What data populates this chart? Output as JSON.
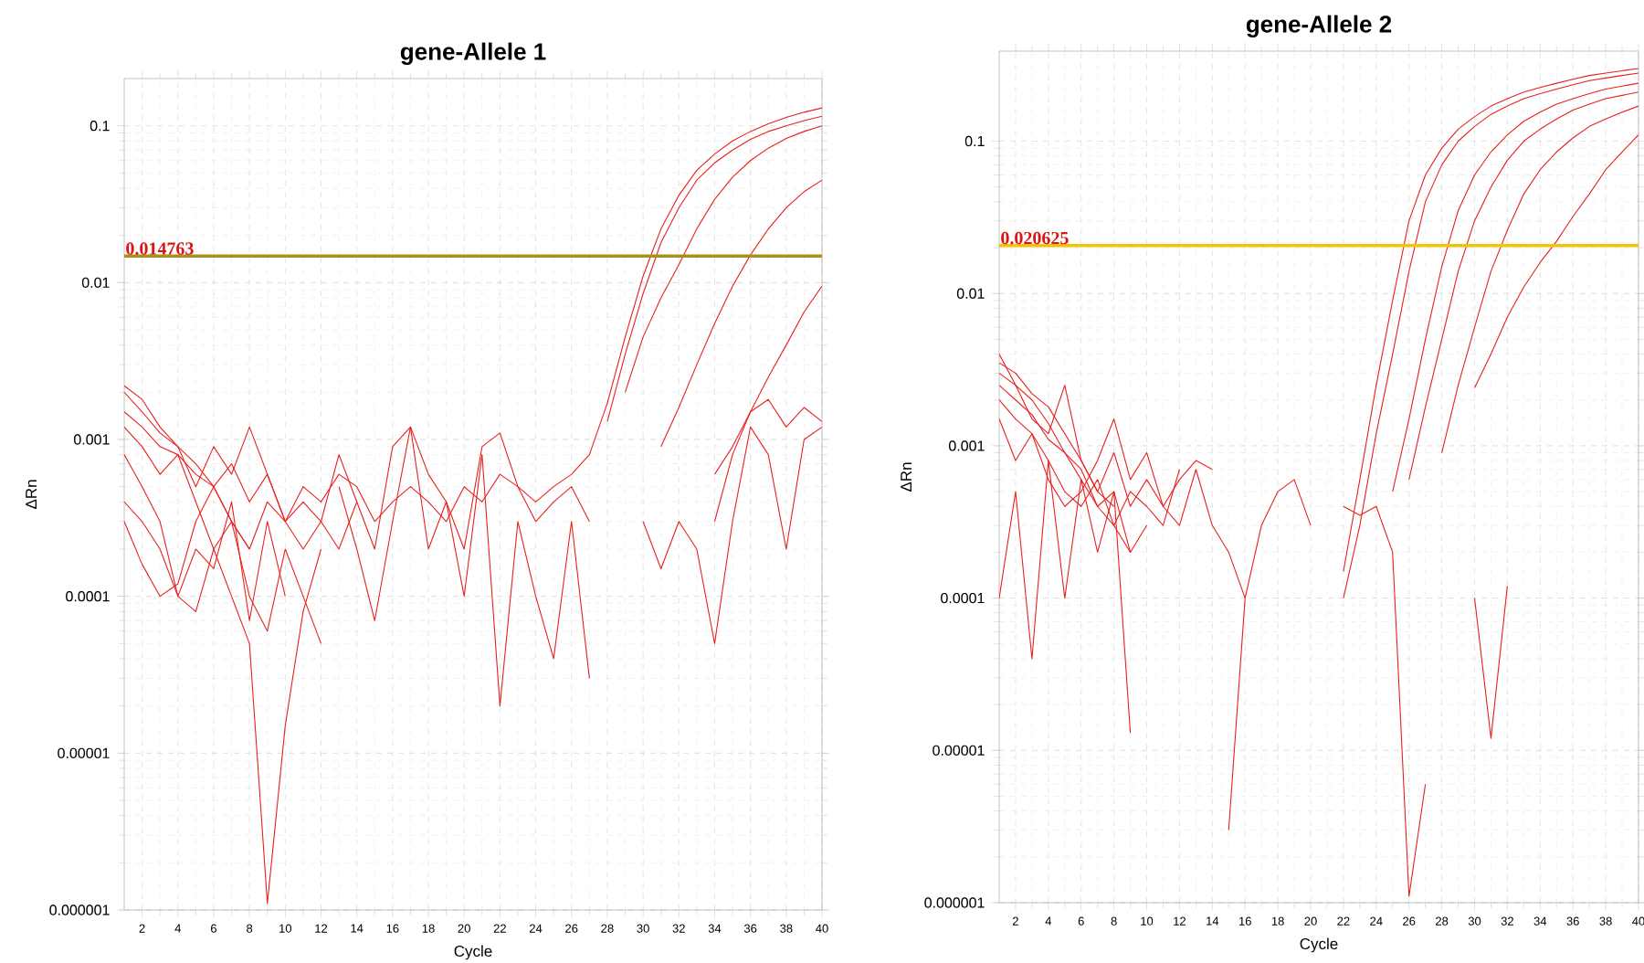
{
  "chart_data": [
    {
      "type": "line",
      "title": "gene-Allele 1",
      "xlabel": "Cycle",
      "ylabel": "ΔRn",
      "log": true,
      "grid": true,
      "xlim": [
        1,
        40
      ],
      "ylim": [
        1e-06,
        0.2
      ],
      "xticks": [
        2,
        4,
        6,
        8,
        10,
        12,
        14,
        16,
        18,
        20,
        22,
        24,
        26,
        28,
        30,
        32,
        34,
        36,
        38,
        40
      ],
      "yticks": [
        {
          "value": 1e-06,
          "label": "0.000001"
        },
        {
          "value": 1e-05,
          "label": "0.00001"
        },
        {
          "value": 0.0001,
          "label": "0.0001"
        },
        {
          "value": 0.001,
          "label": "0.001"
        },
        {
          "value": 0.01,
          "label": "0.01"
        },
        {
          "value": 0.1,
          "label": "0.1"
        }
      ],
      "x": [
        1,
        2,
        3,
        4,
        5,
        6,
        7,
        8,
        9,
        10,
        11,
        12,
        13,
        14,
        15,
        16,
        17,
        18,
        19,
        20,
        21,
        22,
        23,
        24,
        25,
        26,
        27,
        28,
        29,
        30,
        31,
        32,
        33,
        34,
        35,
        36,
        37,
        38,
        39,
        40
      ],
      "ref_lines": [
        {
          "axis": "y",
          "value": 0.014763,
          "label": "0.014763",
          "color": "#a8901c"
        }
      ],
      "series": [
        {
          "color": "#e8201e",
          "values": [
            0.0015,
            0.0012,
            0.0009,
            0.0008,
            0.0006,
            0.0005,
            0.0007,
            0.0004,
            0.0006,
            0.0003,
            0.0005,
            0.0004,
            0.0006,
            0.0005,
            0.0003,
            0.0004,
            0.0005,
            0.0004,
            0.0003,
            0.0005,
            0.0004,
            0.0006,
            0.0005,
            0.0004,
            0.0005,
            0.0006,
            0.0008,
            0.0017,
            0.0045,
            0.011,
            0.022,
            0.036,
            0.052,
            0.066,
            0.08,
            0.092,
            0.103,
            0.113,
            0.122,
            0.13
          ]
        },
        {
          "color": "#e8201e",
          "values": [
            0.002,
            0.0015,
            0.0011,
            0.0009,
            0.0007,
            0.0005,
            0.0003,
            0.0002,
            0.0004,
            0.0003,
            0.0002,
            0.0003,
            0.0002,
            0.0004,
            null,
            null,
            null,
            null,
            null,
            null,
            null,
            null,
            null,
            null,
            null,
            null,
            null,
            0.0013,
            0.0035,
            0.0085,
            0.018,
            0.03,
            0.045,
            0.058,
            0.07,
            0.082,
            0.092,
            0.1,
            0.108,
            0.115
          ]
        },
        {
          "color": "#e8201e",
          "values": [
            0.0012,
            0.0009,
            0.0006,
            0.0008,
            0.0004,
            0.0002,
            0.0003,
            0.0001,
            6e-05,
            0.0002,
            0.0001,
            5e-05,
            null,
            null,
            null,
            null,
            null,
            null,
            null,
            null,
            null,
            null,
            null,
            null,
            null,
            null,
            null,
            null,
            0.002,
            0.0045,
            0.008,
            0.013,
            0.022,
            0.034,
            0.047,
            0.06,
            0.072,
            0.083,
            0.092,
            0.1
          ]
        },
        {
          "color": "#e8201e",
          "values": [
            0.0008,
            0.0005,
            0.0003,
            0.0001,
            0.0002,
            0.00015,
            0.0004,
            7e-05,
            0.0003,
            0.0001,
            null,
            null,
            null,
            null,
            null,
            null,
            null,
            null,
            null,
            null,
            null,
            null,
            null,
            null,
            null,
            null,
            null,
            null,
            null,
            null,
            0.0009,
            0.0016,
            0.003,
            0.0055,
            0.0095,
            0.015,
            0.022,
            0.03,
            0.038,
            0.045
          ]
        },
        {
          "color": "#e8201e",
          "values": [
            0.0003,
            0.00016,
            0.0001,
            0.00012,
            0.0003,
            0.0005,
            0.0003,
            0.0002,
            null,
            null,
            null,
            null,
            null,
            null,
            null,
            null,
            null,
            null,
            null,
            null,
            null,
            null,
            null,
            null,
            null,
            null,
            null,
            null,
            null,
            null,
            null,
            null,
            null,
            0.0006,
            0.0009,
            0.0015,
            0.0025,
            0.004,
            0.0065,
            0.0095
          ]
        },
        {
          "color": "#e8201e",
          "values": [
            0.0004,
            0.0003,
            0.0002,
            0.0001,
            8e-05,
            0.0002,
            0.0001,
            5e-05,
            1.1e-06,
            1.5e-05,
            8e-05,
            0.0002,
            null,
            null,
            null,
            null,
            null,
            null,
            null,
            null,
            null,
            null,
            null,
            null,
            null,
            null,
            null,
            null,
            null,
            null,
            null,
            null,
            null,
            null,
            null,
            null,
            null,
            null,
            null,
            null
          ]
        },
        {
          "color": "#e8201e",
          "values": [
            null,
            null,
            null,
            null,
            null,
            null,
            null,
            null,
            null,
            null,
            null,
            null,
            0.0005,
            0.0002,
            7e-05,
            0.0003,
            0.0012,
            0.0002,
            0.0004,
            0.0001,
            0.0008,
            2e-05,
            0.0003,
            0.0001,
            4e-05,
            0.0003,
            3e-05,
            null,
            null,
            0.0003,
            0.00015,
            0.0003,
            0.0002,
            5e-05,
            0.0003,
            0.0012,
            0.0008,
            0.0002,
            0.001,
            0.0012
          ]
        },
        {
          "color": "#e8201e",
          "values": [
            0.0022,
            0.0018,
            0.0012,
            0.0009,
            0.0005,
            0.0009,
            0.0006,
            0.0012,
            0.0006,
            0.0003,
            0.0004,
            0.0003,
            0.0008,
            0.0004,
            0.0002,
            0.0009,
            0.0012,
            0.0006,
            0.0004,
            0.0002,
            0.0009,
            0.0011,
            0.0005,
            0.0003,
            0.0004,
            0.0005,
            0.0003,
            null,
            null,
            null,
            null,
            null,
            null,
            0.0003,
            0.0008,
            0.0015,
            0.0018,
            0.0012,
            0.0016,
            0.0013
          ]
        }
      ]
    },
    {
      "type": "line",
      "title": "gene-Allele 2",
      "xlabel": "Cycle",
      "ylabel": "ΔRn",
      "log": true,
      "grid": true,
      "xlim": [
        1,
        40
      ],
      "ylim": [
        1e-06,
        0.39
      ],
      "xticks": [
        2,
        4,
        6,
        8,
        10,
        12,
        14,
        16,
        18,
        20,
        22,
        24,
        26,
        28,
        30,
        32,
        34,
        36,
        38,
        40
      ],
      "yticks": [
        {
          "value": 1e-06,
          "label": "0.000001"
        },
        {
          "value": 1e-05,
          "label": "0.00001"
        },
        {
          "value": 0.0001,
          "label": "0.0001"
        },
        {
          "value": 0.001,
          "label": "0.001"
        },
        {
          "value": 0.01,
          "label": "0.01"
        },
        {
          "value": 0.1,
          "label": "0.1"
        }
      ],
      "x": [
        1,
        2,
        3,
        4,
        5,
        6,
        7,
        8,
        9,
        10,
        11,
        12,
        13,
        14,
        15,
        16,
        17,
        18,
        19,
        20,
        21,
        22,
        23,
        24,
        25,
        26,
        27,
        28,
        29,
        30,
        31,
        32,
        33,
        34,
        35,
        36,
        37,
        38,
        39,
        40
      ],
      "ref_lines": [
        {
          "axis": "y",
          "value": 0.020625,
          "label": "0.020625",
          "color": "#f5c400"
        }
      ],
      "series": [
        {
          "color": "#e8201e",
          "values": [
            0.0035,
            0.003,
            0.0022,
            0.0018,
            0.0012,
            0.0008,
            0.0005,
            0.0004,
            null,
            null,
            null,
            null,
            null,
            null,
            null,
            null,
            null,
            null,
            null,
            null,
            null,
            0.00015,
            0.0006,
            0.0025,
            0.009,
            0.03,
            0.06,
            0.09,
            0.12,
            0.145,
            0.17,
            0.19,
            0.21,
            0.225,
            0.24,
            0.255,
            0.27,
            0.28,
            0.29,
            0.3
          ]
        },
        {
          "color": "#e8201e",
          "values": [
            0.003,
            0.0025,
            0.002,
            0.0014,
            0.0009,
            0.0007,
            0.0004,
            0.0005,
            0.0002,
            null,
            null,
            null,
            null,
            null,
            null,
            null,
            null,
            null,
            null,
            null,
            null,
            0.0001,
            0.0003,
            0.0012,
            0.004,
            0.014,
            0.04,
            0.07,
            0.1,
            0.125,
            0.15,
            0.17,
            0.19,
            0.205,
            0.22,
            0.235,
            0.25,
            0.26,
            0.27,
            0.28
          ]
        },
        {
          "color": "#e8201e",
          "values": [
            0.0025,
            0.002,
            0.0016,
            0.0011,
            0.0009,
            0.0006,
            0.0004,
            0.0003,
            0.0002,
            0.0003,
            null,
            null,
            null,
            null,
            null,
            null,
            null,
            null,
            null,
            null,
            null,
            null,
            null,
            null,
            0.0005,
            0.0015,
            0.005,
            0.015,
            0.035,
            0.06,
            0.085,
            0.11,
            0.135,
            0.155,
            0.175,
            0.19,
            0.205,
            0.22,
            0.23,
            0.24
          ]
        },
        {
          "color": "#e8201e",
          "values": [
            0.002,
            0.0015,
            0.0012,
            0.0008,
            0.0005,
            0.0004,
            0.0006,
            0.0003,
            0.0005,
            0.0004,
            0.0003,
            0.0007,
            null,
            null,
            null,
            null,
            null,
            null,
            null,
            null,
            null,
            null,
            null,
            null,
            null,
            0.0006,
            0.0018,
            0.005,
            0.014,
            0.03,
            0.05,
            0.075,
            0.1,
            0.12,
            0.14,
            0.16,
            0.175,
            0.19,
            0.2,
            0.21
          ]
        },
        {
          "color": "#e8201e",
          "values": [
            0.0015,
            0.0008,
            0.0012,
            0.0006,
            0.0004,
            0.0005,
            0.0008,
            0.0015,
            0.0006,
            0.0009,
            0.0004,
            0.0006,
            0.0008,
            0.0007,
            null,
            null,
            null,
            null,
            null,
            null,
            null,
            null,
            null,
            null,
            null,
            null,
            null,
            0.0009,
            0.0025,
            0.006,
            0.014,
            0.026,
            0.045,
            0.065,
            0.085,
            0.105,
            0.125,
            0.14,
            0.155,
            0.17
          ]
        },
        {
          "color": "#e8201e",
          "values": [
            null,
            null,
            null,
            null,
            null,
            null,
            null,
            null,
            null,
            null,
            null,
            null,
            null,
            null,
            null,
            null,
            null,
            null,
            null,
            null,
            null,
            null,
            null,
            null,
            null,
            null,
            null,
            null,
            null,
            0.0001,
            1.2e-05,
            0.00012,
            null,
            null,
            null,
            null,
            null,
            null,
            null,
            null
          ]
        },
        {
          "color": "#e8201e",
          "values": [
            null,
            null,
            null,
            null,
            null,
            null,
            null,
            null,
            null,
            null,
            null,
            null,
            null,
            null,
            null,
            null,
            null,
            null,
            null,
            null,
            null,
            null,
            null,
            null,
            null,
            null,
            null,
            null,
            null,
            0.0024,
            0.004,
            0.007,
            0.011,
            0.016,
            0.022,
            0.032,
            0.045,
            0.065,
            0.085,
            0.11
          ]
        },
        {
          "color": "#e8201e",
          "values": [
            0.004,
            0.0025,
            0.0015,
            0.0012,
            0.0025,
            0.0008,
            0.0005,
            0.0009,
            0.0004,
            0.0006,
            0.0004,
            0.0003,
            0.0007,
            0.0003,
            0.0002,
            0.0001,
            0.0003,
            0.0005,
            0.0006,
            0.0003,
            null,
            null,
            null,
            null,
            null,
            null,
            null,
            null,
            null,
            null,
            null,
            null,
            null,
            null,
            null,
            null,
            null,
            null,
            null,
            null
          ]
        },
        {
          "color": "#e8201e",
          "values": [
            0.0001,
            0.0005,
            4e-05,
            0.0008,
            0.0001,
            0.0006,
            0.0002,
            0.0005,
            1.3e-05,
            null,
            null,
            null,
            null,
            null,
            3e-06,
            0.0001,
            null,
            null,
            null,
            null,
            null,
            0.0004,
            0.00035,
            0.0004,
            0.0002,
            1.1e-06,
            6e-06,
            null,
            null,
            null,
            null,
            null,
            null,
            null,
            null,
            null,
            null,
            null,
            null,
            null
          ]
        }
      ]
    }
  ]
}
